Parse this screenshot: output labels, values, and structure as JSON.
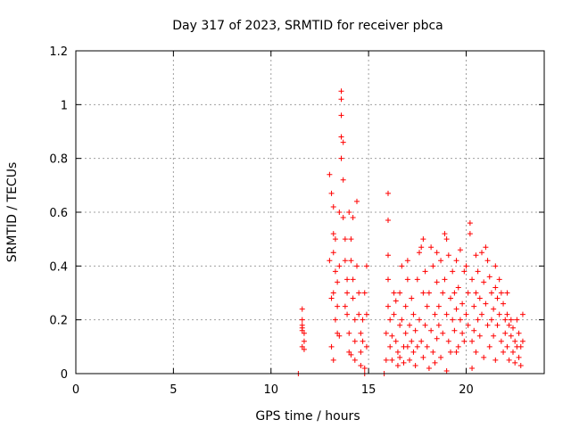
{
  "chart_data": {
    "type": "scatter",
    "title": "Day 317 of 2023, SRMTID for receiver pbca",
    "xlabel": "GPS time / hours",
    "ylabel": "SRMTID / TECUs",
    "xlim": [
      0,
      24
    ],
    "ylim": [
      0,
      1.2
    ],
    "xticks": [
      0,
      5,
      10,
      15,
      20
    ],
    "xtick_labels": [
      "0",
      "5",
      "10",
      "15",
      "20"
    ],
    "yticks": [
      0,
      0.2,
      0.4,
      0.6,
      0.8,
      1.0,
      1.2
    ],
    "ytick_labels": [
      "0",
      "0.2",
      "0.4",
      "0.6",
      "0.8",
      "1",
      "1.2"
    ],
    "grid": true,
    "marker": "+",
    "color": "#ff0000",
    "series": [
      {
        "name": "SRMTID",
        "points": [
          [
            11.4,
            0.0
          ],
          [
            11.6,
            0.24
          ],
          [
            11.6,
            0.2
          ],
          [
            11.6,
            0.18
          ],
          [
            11.6,
            0.17
          ],
          [
            11.6,
            0.16
          ],
          [
            11.7,
            0.15
          ],
          [
            11.7,
            0.12
          ],
          [
            11.6,
            0.1
          ],
          [
            11.7,
            0.09
          ],
          [
            13.0,
            0.74
          ],
          [
            13.1,
            0.67
          ],
          [
            13.2,
            0.62
          ],
          [
            13.2,
            0.52
          ],
          [
            13.3,
            0.5
          ],
          [
            13.2,
            0.45
          ],
          [
            13.3,
            0.38
          ],
          [
            13.2,
            0.3
          ],
          [
            13.4,
            0.25
          ],
          [
            13.3,
            0.2
          ],
          [
            13.1,
            0.1
          ],
          [
            13.2,
            0.05
          ],
          [
            13.4,
            0.15
          ],
          [
            13.5,
            0.4
          ],
          [
            13.5,
            0.6
          ],
          [
            13.6,
            0.8
          ],
          [
            13.6,
            0.88
          ],
          [
            13.6,
            0.96
          ],
          [
            13.6,
            1.05
          ],
          [
            13.6,
            1.02
          ],
          [
            13.7,
            0.86
          ],
          [
            13.7,
            0.72
          ],
          [
            13.7,
            0.58
          ],
          [
            13.8,
            0.5
          ],
          [
            13.8,
            0.42
          ],
          [
            13.9,
            0.35
          ],
          [
            13.9,
            0.3
          ],
          [
            13.9,
            0.22
          ],
          [
            14.0,
            0.15
          ],
          [
            14.0,
            0.08
          ],
          [
            14.0,
            0.6
          ],
          [
            14.1,
            0.5
          ],
          [
            14.1,
            0.42
          ],
          [
            14.2,
            0.35
          ],
          [
            14.2,
            0.28
          ],
          [
            14.3,
            0.2
          ],
          [
            14.3,
            0.12
          ],
          [
            14.3,
            0.05
          ],
          [
            14.4,
            0.64
          ],
          [
            14.4,
            0.4
          ],
          [
            14.5,
            0.3
          ],
          [
            14.5,
            0.22
          ],
          [
            14.6,
            0.15
          ],
          [
            14.6,
            0.08
          ],
          [
            14.6,
            0.03
          ],
          [
            14.7,
            0.12
          ],
          [
            14.7,
            0.2
          ],
          [
            14.8,
            0.02
          ],
          [
            14.8,
            0.0
          ],
          [
            14.8,
            0.3
          ],
          [
            14.9,
            0.22
          ],
          [
            14.9,
            0.1
          ],
          [
            14.9,
            0.4
          ],
          [
            13.5,
            0.14
          ],
          [
            13.4,
            0.34
          ],
          [
            14.2,
            0.58
          ],
          [
            13.8,
            0.25
          ],
          [
            14.1,
            0.07
          ],
          [
            13.0,
            0.42
          ],
          [
            13.1,
            0.28
          ],
          [
            15.8,
            0.0
          ],
          [
            15.9,
            0.05
          ],
          [
            15.9,
            0.15
          ],
          [
            16.0,
            0.25
          ],
          [
            16.0,
            0.35
          ],
          [
            16.0,
            0.44
          ],
          [
            16.0,
            0.57
          ],
          [
            16.0,
            0.67
          ],
          [
            16.1,
            0.2
          ],
          [
            16.1,
            0.1
          ],
          [
            16.2,
            0.05
          ],
          [
            16.2,
            0.14
          ],
          [
            16.3,
            0.3
          ],
          [
            16.3,
            0.22
          ],
          [
            16.4,
            0.27
          ],
          [
            16.4,
            0.12
          ],
          [
            16.5,
            0.03
          ],
          [
            16.5,
            0.08
          ],
          [
            16.6,
            0.18
          ],
          [
            16.6,
            0.3
          ],
          [
            16.7,
            0.4
          ],
          [
            16.7,
            0.2
          ],
          [
            16.8,
            0.1
          ],
          [
            16.8,
            0.04
          ],
          [
            16.9,
            0.15
          ],
          [
            16.9,
            0.25
          ],
          [
            17.0,
            0.35
          ],
          [
            17.0,
            0.1
          ],
          [
            17.1,
            0.05
          ],
          [
            17.1,
            0.18
          ],
          [
            17.2,
            0.12
          ],
          [
            17.2,
            0.28
          ],
          [
            17.3,
            0.22
          ],
          [
            17.3,
            0.08
          ],
          [
            17.4,
            0.16
          ],
          [
            17.4,
            0.03
          ],
          [
            17.5,
            0.1
          ],
          [
            17.5,
            0.35
          ],
          [
            17.6,
            0.45
          ],
          [
            17.6,
            0.2
          ],
          [
            17.7,
            0.47
          ],
          [
            17.7,
            0.12
          ],
          [
            17.8,
            0.3
          ],
          [
            17.8,
            0.06
          ],
          [
            17.9,
            0.18
          ],
          [
            17.9,
            0.38
          ],
          [
            18.0,
            0.25
          ],
          [
            18.0,
            0.1
          ],
          [
            18.1,
            0.02
          ],
          [
            18.1,
            0.3
          ],
          [
            18.2,
            0.47
          ],
          [
            18.2,
            0.16
          ],
          [
            18.3,
            0.08
          ],
          [
            18.3,
            0.4
          ],
          [
            18.4,
            0.22
          ],
          [
            18.4,
            0.04
          ],
          [
            18.5,
            0.13
          ],
          [
            18.5,
            0.34
          ],
          [
            18.6,
            0.25
          ],
          [
            18.6,
            0.18
          ],
          [
            18.7,
            0.42
          ],
          [
            18.7,
            0.06
          ],
          [
            18.8,
            0.3
          ],
          [
            18.8,
            0.15
          ],
          [
            18.9,
            0.52
          ],
          [
            18.9,
            0.35
          ],
          [
            19.0,
            0.5
          ],
          [
            19.0,
            0.22
          ],
          [
            19.1,
            0.12
          ],
          [
            19.1,
            0.44
          ],
          [
            19.2,
            0.28
          ],
          [
            19.2,
            0.08
          ],
          [
            19.3,
            0.2
          ],
          [
            19.3,
            0.38
          ],
          [
            19.4,
            0.16
          ],
          [
            19.4,
            0.3
          ],
          [
            19.5,
            0.24
          ],
          [
            19.5,
            0.42
          ],
          [
            19.6,
            0.1
          ],
          [
            19.6,
            0.32
          ],
          [
            19.7,
            0.46
          ],
          [
            19.7,
            0.2
          ],
          [
            19.8,
            0.15
          ],
          [
            19.8,
            0.26
          ],
          [
            19.9,
            0.38
          ],
          [
            19.9,
            0.12
          ],
          [
            20.0,
            0.22
          ],
          [
            20.0,
            0.4
          ],
          [
            20.1,
            0.3
          ],
          [
            20.1,
            0.18
          ],
          [
            20.2,
            0.52
          ],
          [
            20.2,
            0.56
          ],
          [
            20.3,
            0.35
          ],
          [
            20.3,
            0.12
          ],
          [
            20.4,
            0.25
          ],
          [
            20.4,
            0.16
          ],
          [
            20.5,
            0.3
          ],
          [
            20.5,
            0.08
          ],
          [
            20.6,
            0.2
          ],
          [
            20.6,
            0.38
          ],
          [
            20.7,
            0.28
          ],
          [
            20.7,
            0.14
          ],
          [
            20.8,
            0.45
          ],
          [
            20.8,
            0.22
          ],
          [
            20.9,
            0.34
          ],
          [
            20.9,
            0.06
          ],
          [
            21.0,
            0.47
          ],
          [
            21.0,
            0.26
          ],
          [
            21.1,
            0.42
          ],
          [
            21.1,
            0.18
          ],
          [
            21.2,
            0.36
          ],
          [
            21.2,
            0.1
          ],
          [
            21.3,
            0.3
          ],
          [
            21.3,
            0.2
          ],
          [
            21.4,
            0.24
          ],
          [
            21.4,
            0.14
          ],
          [
            21.5,
            0.32
          ],
          [
            21.5,
            0.05
          ],
          [
            21.6,
            0.28
          ],
          [
            21.6,
            0.18
          ],
          [
            21.7,
            0.22
          ],
          [
            21.7,
            0.35
          ],
          [
            21.8,
            0.12
          ],
          [
            21.8,
            0.3
          ],
          [
            21.9,
            0.26
          ],
          [
            21.9,
            0.08
          ],
          [
            22.0,
            0.2
          ],
          [
            22.0,
            0.15
          ],
          [
            22.1,
            0.22
          ],
          [
            22.1,
            0.1
          ],
          [
            22.2,
            0.18
          ],
          [
            22.2,
            0.05
          ],
          [
            22.3,
            0.2
          ],
          [
            22.3,
            0.14
          ],
          [
            22.4,
            0.08
          ],
          [
            22.4,
            0.17
          ],
          [
            22.5,
            0.12
          ],
          [
            22.5,
            0.04
          ],
          [
            22.6,
            0.1
          ],
          [
            22.6,
            0.2
          ],
          [
            22.7,
            0.06
          ],
          [
            22.7,
            0.15
          ],
          [
            22.8,
            0.03
          ],
          [
            22.8,
            0.1
          ],
          [
            22.9,
            0.22
          ],
          [
            22.9,
            0.12
          ],
          [
            18.5,
            0.45
          ],
          [
            19.5,
            0.08
          ],
          [
            20.5,
            0.44
          ],
          [
            17.0,
            0.42
          ],
          [
            16.6,
            0.06
          ],
          [
            17.8,
            0.5
          ],
          [
            19.0,
            0.01
          ],
          [
            20.3,
            0.02
          ],
          [
            21.5,
            0.4
          ],
          [
            22.1,
            0.3
          ]
        ]
      }
    ]
  }
}
